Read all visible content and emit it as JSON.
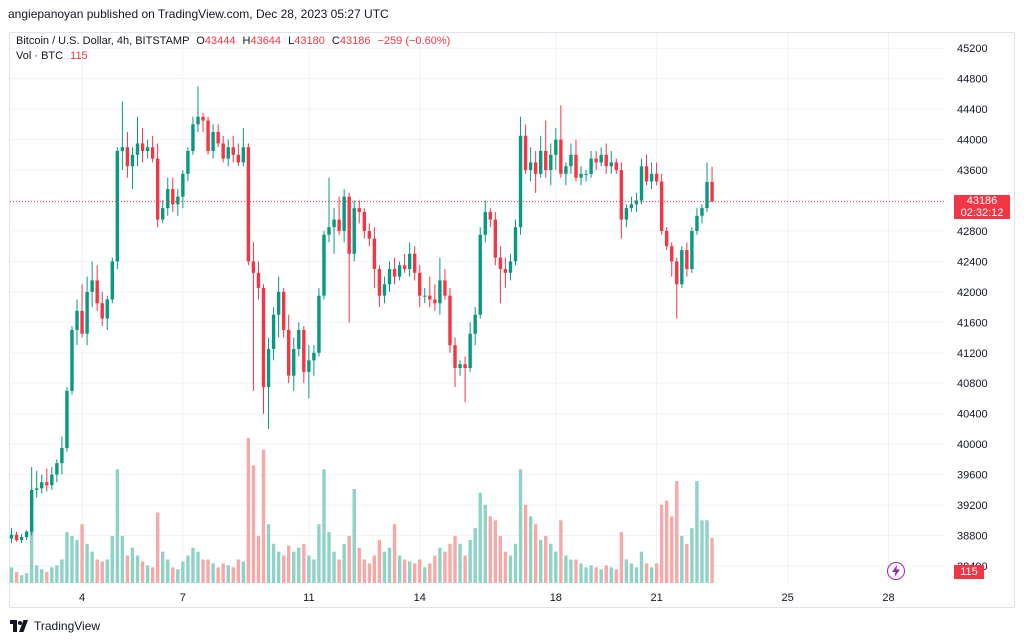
{
  "header": {
    "published_line": "angiepanoyan published on TradingView.com, Dec 28, 2023 05:27 UTC"
  },
  "legend": {
    "symbol": "Bitcoin / U.S. Dollar, 4h, BITSTAMP",
    "open_key": "O",
    "open": "43444",
    "high_key": "H",
    "high": "43644",
    "low_key": "L",
    "low": "43180",
    "close_key": "C",
    "close": "43186",
    "change": "−259 (−0.60%)",
    "vol_label": "Vol · BTC",
    "vol_value": "115"
  },
  "price_tag": {
    "price": "43186",
    "countdown": "02:32:12"
  },
  "volume_tag": {
    "value": "115"
  },
  "footer": {
    "brand": "TradingView"
  },
  "colors": {
    "up": "#089981",
    "down": "#f23645",
    "vol_up": "#8ed3c6",
    "vol_down": "#f7a9a7",
    "alert": "#9c27b0"
  },
  "icons": {
    "alert": "lightning-alert-icon",
    "logo": "tradingview-logo-icon"
  },
  "chart_data": {
    "type": "candlestick",
    "ylim": [
      38150,
      45400
    ],
    "y_ticks": [
      45200,
      44800,
      44400,
      44000,
      43600,
      43200,
      42800,
      42400,
      42000,
      41600,
      41200,
      40800,
      40400,
      40000,
      39600,
      39200,
      38800,
      38400
    ],
    "x_ticks": [
      "4",
      "7",
      "11",
      "14",
      "18",
      "21",
      "25",
      "28"
    ],
    "x_tick_candles": [
      14,
      34,
      59,
      81,
      108,
      128,
      154,
      174
    ],
    "candles": [
      {
        "o": 38760,
        "h": 38900,
        "l": 38700,
        "c": 38810,
        "v": 40
      },
      {
        "o": 38810,
        "h": 38850,
        "l": 38720,
        "c": 38740,
        "v": 28
      },
      {
        "o": 38740,
        "h": 38820,
        "l": 38700,
        "c": 38780,
        "v": 20
      },
      {
        "o": 38780,
        "h": 38870,
        "l": 38740,
        "c": 38850,
        "v": 25
      },
      {
        "o": 38850,
        "h": 39700,
        "l": 38800,
        "c": 39400,
        "v": 160
      },
      {
        "o": 39400,
        "h": 39650,
        "l": 39300,
        "c": 39420,
        "v": 45
      },
      {
        "o": 39420,
        "h": 39600,
        "l": 39350,
        "c": 39500,
        "v": 35
      },
      {
        "o": 39500,
        "h": 39680,
        "l": 39380,
        "c": 39460,
        "v": 28
      },
      {
        "o": 39460,
        "h": 39700,
        "l": 39400,
        "c": 39600,
        "v": 40
      },
      {
        "o": 39600,
        "h": 39800,
        "l": 39500,
        "c": 39750,
        "v": 45
      },
      {
        "o": 39750,
        "h": 40100,
        "l": 39600,
        "c": 39950,
        "v": 60
      },
      {
        "o": 39950,
        "h": 40750,
        "l": 39900,
        "c": 40700,
        "v": 130
      },
      {
        "o": 40700,
        "h": 41550,
        "l": 40650,
        "c": 41500,
        "v": 120
      },
      {
        "o": 41500,
        "h": 41900,
        "l": 41300,
        "c": 41750,
        "v": 110
      },
      {
        "o": 41750,
        "h": 42100,
        "l": 41400,
        "c": 41450,
        "v": 150
      },
      {
        "o": 41450,
        "h": 42200,
        "l": 41300,
        "c": 42000,
        "v": 100
      },
      {
        "o": 42000,
        "h": 42400,
        "l": 41800,
        "c": 42150,
        "v": 80
      },
      {
        "o": 42150,
        "h": 42350,
        "l": 41750,
        "c": 41850,
        "v": 60
      },
      {
        "o": 41850,
        "h": 42000,
        "l": 41550,
        "c": 41650,
        "v": 55
      },
      {
        "o": 41650,
        "h": 41950,
        "l": 41500,
        "c": 41900,
        "v": 60
      },
      {
        "o": 41900,
        "h": 42450,
        "l": 41850,
        "c": 42400,
        "v": 120
      },
      {
        "o": 42400,
        "h": 43900,
        "l": 42300,
        "c": 43850,
        "v": 290
      },
      {
        "o": 43850,
        "h": 44500,
        "l": 43600,
        "c": 43900,
        "v": 120
      },
      {
        "o": 43900,
        "h": 44100,
        "l": 43500,
        "c": 43650,
        "v": 70
      },
      {
        "o": 43650,
        "h": 43900,
        "l": 43350,
        "c": 43800,
        "v": 90
      },
      {
        "o": 43800,
        "h": 44300,
        "l": 43650,
        "c": 43950,
        "v": 70
      },
      {
        "o": 43950,
        "h": 44150,
        "l": 43700,
        "c": 43850,
        "v": 55
      },
      {
        "o": 43850,
        "h": 44000,
        "l": 43750,
        "c": 43900,
        "v": 45
      },
      {
        "o": 43900,
        "h": 44050,
        "l": 43700,
        "c": 43750,
        "v": 40
      },
      {
        "o": 43750,
        "h": 43950,
        "l": 42850,
        "c": 42950,
        "v": 180
      },
      {
        "o": 42950,
        "h": 43200,
        "l": 42900,
        "c": 43100,
        "v": 80
      },
      {
        "o": 43100,
        "h": 43500,
        "l": 43000,
        "c": 43350,
        "v": 60
      },
      {
        "o": 43350,
        "h": 43500,
        "l": 43050,
        "c": 43150,
        "v": 40
      },
      {
        "o": 43150,
        "h": 43350,
        "l": 43000,
        "c": 43250,
        "v": 35
      },
      {
        "o": 43250,
        "h": 43600,
        "l": 43100,
        "c": 43550,
        "v": 55
      },
      {
        "o": 43550,
        "h": 43900,
        "l": 43450,
        "c": 43850,
        "v": 70
      },
      {
        "o": 43850,
        "h": 44300,
        "l": 43800,
        "c": 44200,
        "v": 90
      },
      {
        "o": 44200,
        "h": 44700,
        "l": 44100,
        "c": 44300,
        "v": 80
      },
      {
        "o": 44300,
        "h": 44350,
        "l": 44100,
        "c": 44250,
        "v": 60
      },
      {
        "o": 44250,
        "h": 44300,
        "l": 43800,
        "c": 43850,
        "v": 60
      },
      {
        "o": 43850,
        "h": 44200,
        "l": 43750,
        "c": 44100,
        "v": 50
      },
      {
        "o": 44100,
        "h": 44200,
        "l": 43900,
        "c": 43950,
        "v": 40
      },
      {
        "o": 43950,
        "h": 44050,
        "l": 43700,
        "c": 43750,
        "v": 50
      },
      {
        "o": 43750,
        "h": 44000,
        "l": 43650,
        "c": 43900,
        "v": 45
      },
      {
        "o": 43900,
        "h": 44050,
        "l": 43700,
        "c": 43800,
        "v": 40
      },
      {
        "o": 43800,
        "h": 43950,
        "l": 43650,
        "c": 43700,
        "v": 60
      },
      {
        "o": 43700,
        "h": 44150,
        "l": 43650,
        "c": 43900,
        "v": 55
      },
      {
        "o": 43900,
        "h": 43950,
        "l": 42350,
        "c": 42400,
        "v": 370
      },
      {
        "o": 42400,
        "h": 42650,
        "l": 40700,
        "c": 42250,
        "v": 300
      },
      {
        "o": 42250,
        "h": 42400,
        "l": 41900,
        "c": 42050,
        "v": 120
      },
      {
        "o": 42050,
        "h": 42100,
        "l": 40400,
        "c": 40750,
        "v": 340
      },
      {
        "o": 40750,
        "h": 41400,
        "l": 40200,
        "c": 41250,
        "v": 150
      },
      {
        "o": 41250,
        "h": 41800,
        "l": 41100,
        "c": 41700,
        "v": 100
      },
      {
        "o": 41700,
        "h": 42200,
        "l": 41400,
        "c": 42000,
        "v": 80
      },
      {
        "o": 42000,
        "h": 42050,
        "l": 41400,
        "c": 41500,
        "v": 70
      },
      {
        "o": 41500,
        "h": 41700,
        "l": 40800,
        "c": 40900,
        "v": 95
      },
      {
        "o": 40900,
        "h": 41400,
        "l": 40700,
        "c": 41250,
        "v": 80
      },
      {
        "o": 41250,
        "h": 41600,
        "l": 41150,
        "c": 41500,
        "v": 90
      },
      {
        "o": 41500,
        "h": 41550,
        "l": 40800,
        "c": 40950,
        "v": 100
      },
      {
        "o": 40950,
        "h": 41300,
        "l": 40600,
        "c": 41100,
        "v": 70
      },
      {
        "o": 41100,
        "h": 41300,
        "l": 40900,
        "c": 41200,
        "v": 60
      },
      {
        "o": 41200,
        "h": 42050,
        "l": 41150,
        "c": 41950,
        "v": 150
      },
      {
        "o": 41950,
        "h": 42800,
        "l": 41900,
        "c": 42750,
        "v": 290
      },
      {
        "o": 42750,
        "h": 43500,
        "l": 42650,
        "c": 42850,
        "v": 130
      },
      {
        "o": 42850,
        "h": 43100,
        "l": 42500,
        "c": 42950,
        "v": 80
      },
      {
        "o": 42950,
        "h": 43250,
        "l": 42750,
        "c": 42800,
        "v": 60
      },
      {
        "o": 42800,
        "h": 43350,
        "l": 42650,
        "c": 43250,
        "v": 100
      },
      {
        "o": 43250,
        "h": 43300,
        "l": 41600,
        "c": 42500,
        "v": 120
      },
      {
        "o": 42500,
        "h": 43200,
        "l": 42400,
        "c": 43100,
        "v": 240
      },
      {
        "o": 43100,
        "h": 43200,
        "l": 42900,
        "c": 43050,
        "v": 90
      },
      {
        "o": 43050,
        "h": 43100,
        "l": 42700,
        "c": 42800,
        "v": 60
      },
      {
        "o": 42800,
        "h": 42900,
        "l": 42600,
        "c": 42700,
        "v": 50
      },
      {
        "o": 42700,
        "h": 42850,
        "l": 42050,
        "c": 42300,
        "v": 70
      },
      {
        "o": 42300,
        "h": 42350,
        "l": 41800,
        "c": 41950,
        "v": 110
      },
      {
        "o": 41950,
        "h": 42200,
        "l": 41850,
        "c": 42100,
        "v": 80
      },
      {
        "o": 42100,
        "h": 42400,
        "l": 42000,
        "c": 42300,
        "v": 90
      },
      {
        "o": 42300,
        "h": 42450,
        "l": 42100,
        "c": 42200,
        "v": 150
      },
      {
        "o": 42200,
        "h": 42400,
        "l": 42150,
        "c": 42350,
        "v": 70
      },
      {
        "o": 42350,
        "h": 42500,
        "l": 42250,
        "c": 42300,
        "v": 60
      },
      {
        "o": 42300,
        "h": 42650,
        "l": 42200,
        "c": 42500,
        "v": 55
      },
      {
        "o": 42500,
        "h": 42600,
        "l": 42150,
        "c": 42250,
        "v": 50
      },
      {
        "o": 42250,
        "h": 42350,
        "l": 41800,
        "c": 41950,
        "v": 60
      },
      {
        "o": 41950,
        "h": 42050,
        "l": 41850,
        "c": 41950,
        "v": 40
      },
      {
        "o": 41950,
        "h": 42200,
        "l": 41800,
        "c": 41900,
        "v": 50
      },
      {
        "o": 41900,
        "h": 42100,
        "l": 41750,
        "c": 41850,
        "v": 70
      },
      {
        "o": 41850,
        "h": 42450,
        "l": 41700,
        "c": 42150,
        "v": 90
      },
      {
        "o": 42150,
        "h": 42300,
        "l": 41900,
        "c": 41950,
        "v": 80
      },
      {
        "o": 41950,
        "h": 42050,
        "l": 41200,
        "c": 41300,
        "v": 100
      },
      {
        "o": 41300,
        "h": 41400,
        "l": 40750,
        "c": 41000,
        "v": 120
      },
      {
        "o": 41000,
        "h": 41100,
        "l": 40900,
        "c": 41050,
        "v": 100
      },
      {
        "o": 41050,
        "h": 41150,
        "l": 40550,
        "c": 41000,
        "v": 70
      },
      {
        "o": 41000,
        "h": 41600,
        "l": 40950,
        "c": 41450,
        "v": 110
      },
      {
        "o": 41450,
        "h": 41800,
        "l": 41300,
        "c": 41700,
        "v": 140
      },
      {
        "o": 41700,
        "h": 42850,
        "l": 41650,
        "c": 42750,
        "v": 230
      },
      {
        "o": 42750,
        "h": 43200,
        "l": 42650,
        "c": 43050,
        "v": 200
      },
      {
        "o": 43050,
        "h": 43100,
        "l": 42850,
        "c": 42950,
        "v": 170
      },
      {
        "o": 42950,
        "h": 43050,
        "l": 42350,
        "c": 42450,
        "v": 160
      },
      {
        "o": 42450,
        "h": 42600,
        "l": 41850,
        "c": 42300,
        "v": 120
      },
      {
        "o": 42300,
        "h": 42450,
        "l": 42050,
        "c": 42250,
        "v": 80
      },
      {
        "o": 42250,
        "h": 42500,
        "l": 42150,
        "c": 42400,
        "v": 70
      },
      {
        "o": 42400,
        "h": 42950,
        "l": 42350,
        "c": 42850,
        "v": 100
      },
      {
        "o": 42850,
        "h": 44300,
        "l": 42750,
        "c": 44050,
        "v": 290
      },
      {
        "o": 44050,
        "h": 44200,
        "l": 43550,
        "c": 43600,
        "v": 200
      },
      {
        "o": 43600,
        "h": 43900,
        "l": 43450,
        "c": 43700,
        "v": 170
      },
      {
        "o": 43700,
        "h": 43850,
        "l": 43300,
        "c": 43550,
        "v": 150
      },
      {
        "o": 43550,
        "h": 44050,
        "l": 43500,
        "c": 43850,
        "v": 110
      },
      {
        "o": 43850,
        "h": 44250,
        "l": 43500,
        "c": 43600,
        "v": 120
      },
      {
        "o": 43600,
        "h": 43950,
        "l": 43400,
        "c": 43800,
        "v": 100
      },
      {
        "o": 43800,
        "h": 44150,
        "l": 43600,
        "c": 44000,
        "v": 80
      },
      {
        "o": 44000,
        "h": 44450,
        "l": 43500,
        "c": 43550,
        "v": 160
      },
      {
        "o": 43550,
        "h": 43700,
        "l": 43400,
        "c": 43650,
        "v": 70
      },
      {
        "o": 43650,
        "h": 43950,
        "l": 43550,
        "c": 43800,
        "v": 60
      },
      {
        "o": 43800,
        "h": 44000,
        "l": 43450,
        "c": 43500,
        "v": 60
      },
      {
        "o": 43500,
        "h": 43650,
        "l": 43400,
        "c": 43550,
        "v": 50
      },
      {
        "o": 43550,
        "h": 43600,
        "l": 43450,
        "c": 43550,
        "v": 40
      },
      {
        "o": 43550,
        "h": 43850,
        "l": 43500,
        "c": 43750,
        "v": 45
      },
      {
        "o": 43750,
        "h": 43850,
        "l": 43600,
        "c": 43700,
        "v": 40
      },
      {
        "o": 43700,
        "h": 43900,
        "l": 43650,
        "c": 43800,
        "v": 35
      },
      {
        "o": 43800,
        "h": 43950,
        "l": 43550,
        "c": 43650,
        "v": 45
      },
      {
        "o": 43650,
        "h": 43850,
        "l": 43550,
        "c": 43700,
        "v": 40
      },
      {
        "o": 43700,
        "h": 43750,
        "l": 43550,
        "c": 43600,
        "v": 35
      },
      {
        "o": 43600,
        "h": 43700,
        "l": 42700,
        "c": 42950,
        "v": 130
      },
      {
        "o": 42950,
        "h": 43150,
        "l": 42850,
        "c": 43100,
        "v": 60
      },
      {
        "o": 43100,
        "h": 43250,
        "l": 43050,
        "c": 43150,
        "v": 50
      },
      {
        "o": 43150,
        "h": 43300,
        "l": 43050,
        "c": 43200,
        "v": 40
      },
      {
        "o": 43200,
        "h": 43750,
        "l": 43150,
        "c": 43650,
        "v": 80
      },
      {
        "o": 43650,
        "h": 43800,
        "l": 43400,
        "c": 43450,
        "v": 50
      },
      {
        "o": 43450,
        "h": 43700,
        "l": 43350,
        "c": 43550,
        "v": 40
      },
      {
        "o": 43550,
        "h": 43700,
        "l": 43400,
        "c": 43450,
        "v": 50
      },
      {
        "o": 43450,
        "h": 43550,
        "l": 42750,
        "c": 42800,
        "v": 200
      },
      {
        "o": 42800,
        "h": 42850,
        "l": 42550,
        "c": 42600,
        "v": 210
      },
      {
        "o": 42600,
        "h": 42650,
        "l": 42200,
        "c": 42400,
        "v": 170
      },
      {
        "o": 42400,
        "h": 42450,
        "l": 41650,
        "c": 42100,
        "v": 260
      },
      {
        "o": 42100,
        "h": 42600,
        "l": 42050,
        "c": 42550,
        "v": 120
      },
      {
        "o": 42550,
        "h": 42650,
        "l": 42200,
        "c": 42300,
        "v": 100
      },
      {
        "o": 42300,
        "h": 42850,
        "l": 42250,
        "c": 42800,
        "v": 140
      },
      {
        "o": 42800,
        "h": 43100,
        "l": 42750,
        "c": 43000,
        "v": 260
      },
      {
        "o": 43000,
        "h": 43150,
        "l": 42900,
        "c": 43100,
        "v": 160
      },
      {
        "o": 43100,
        "h": 43700,
        "l": 43050,
        "c": 43444,
        "v": 160
      },
      {
        "o": 43444,
        "h": 43644,
        "l": 43180,
        "c": 43186,
        "v": 115
      }
    ]
  }
}
